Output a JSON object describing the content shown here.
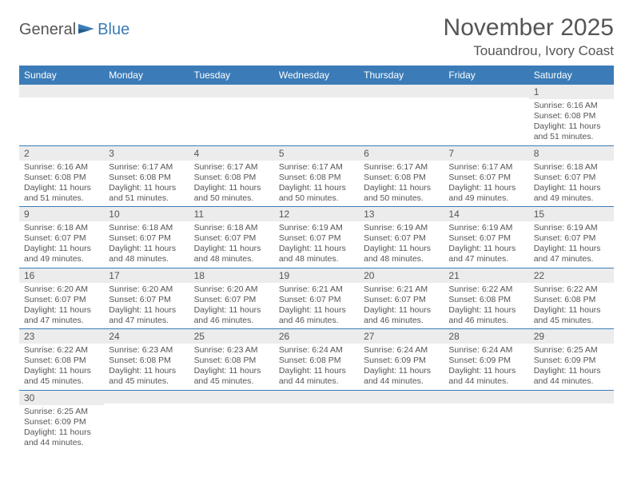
{
  "brand": {
    "general": "General",
    "blue": "Blue"
  },
  "title": "November 2025",
  "location": "Touandrou, Ivory Coast",
  "colors": {
    "header_bg": "#3b7cb8",
    "header_fg": "#ffffff",
    "daynum_bg": "#ececec",
    "text": "#555555",
    "rule": "#3b7cb8"
  },
  "day_labels": [
    "Sunday",
    "Monday",
    "Tuesday",
    "Wednesday",
    "Thursday",
    "Friday",
    "Saturday"
  ],
  "weeks": [
    [
      {
        "n": "",
        "sr": "",
        "ss": "",
        "dl": ""
      },
      {
        "n": "",
        "sr": "",
        "ss": "",
        "dl": ""
      },
      {
        "n": "",
        "sr": "",
        "ss": "",
        "dl": ""
      },
      {
        "n": "",
        "sr": "",
        "ss": "",
        "dl": ""
      },
      {
        "n": "",
        "sr": "",
        "ss": "",
        "dl": ""
      },
      {
        "n": "",
        "sr": "",
        "ss": "",
        "dl": ""
      },
      {
        "n": "1",
        "sr": "Sunrise: 6:16 AM",
        "ss": "Sunset: 6:08 PM",
        "dl": "Daylight: 11 hours and 51 minutes."
      }
    ],
    [
      {
        "n": "2",
        "sr": "Sunrise: 6:16 AM",
        "ss": "Sunset: 6:08 PM",
        "dl": "Daylight: 11 hours and 51 minutes."
      },
      {
        "n": "3",
        "sr": "Sunrise: 6:17 AM",
        "ss": "Sunset: 6:08 PM",
        "dl": "Daylight: 11 hours and 51 minutes."
      },
      {
        "n": "4",
        "sr": "Sunrise: 6:17 AM",
        "ss": "Sunset: 6:08 PM",
        "dl": "Daylight: 11 hours and 50 minutes."
      },
      {
        "n": "5",
        "sr": "Sunrise: 6:17 AM",
        "ss": "Sunset: 6:08 PM",
        "dl": "Daylight: 11 hours and 50 minutes."
      },
      {
        "n": "6",
        "sr": "Sunrise: 6:17 AM",
        "ss": "Sunset: 6:08 PM",
        "dl": "Daylight: 11 hours and 50 minutes."
      },
      {
        "n": "7",
        "sr": "Sunrise: 6:17 AM",
        "ss": "Sunset: 6:07 PM",
        "dl": "Daylight: 11 hours and 49 minutes."
      },
      {
        "n": "8",
        "sr": "Sunrise: 6:18 AM",
        "ss": "Sunset: 6:07 PM",
        "dl": "Daylight: 11 hours and 49 minutes."
      }
    ],
    [
      {
        "n": "9",
        "sr": "Sunrise: 6:18 AM",
        "ss": "Sunset: 6:07 PM",
        "dl": "Daylight: 11 hours and 49 minutes."
      },
      {
        "n": "10",
        "sr": "Sunrise: 6:18 AM",
        "ss": "Sunset: 6:07 PM",
        "dl": "Daylight: 11 hours and 48 minutes."
      },
      {
        "n": "11",
        "sr": "Sunrise: 6:18 AM",
        "ss": "Sunset: 6:07 PM",
        "dl": "Daylight: 11 hours and 48 minutes."
      },
      {
        "n": "12",
        "sr": "Sunrise: 6:19 AM",
        "ss": "Sunset: 6:07 PM",
        "dl": "Daylight: 11 hours and 48 minutes."
      },
      {
        "n": "13",
        "sr": "Sunrise: 6:19 AM",
        "ss": "Sunset: 6:07 PM",
        "dl": "Daylight: 11 hours and 48 minutes."
      },
      {
        "n": "14",
        "sr": "Sunrise: 6:19 AM",
        "ss": "Sunset: 6:07 PM",
        "dl": "Daylight: 11 hours and 47 minutes."
      },
      {
        "n": "15",
        "sr": "Sunrise: 6:19 AM",
        "ss": "Sunset: 6:07 PM",
        "dl": "Daylight: 11 hours and 47 minutes."
      }
    ],
    [
      {
        "n": "16",
        "sr": "Sunrise: 6:20 AM",
        "ss": "Sunset: 6:07 PM",
        "dl": "Daylight: 11 hours and 47 minutes."
      },
      {
        "n": "17",
        "sr": "Sunrise: 6:20 AM",
        "ss": "Sunset: 6:07 PM",
        "dl": "Daylight: 11 hours and 47 minutes."
      },
      {
        "n": "18",
        "sr": "Sunrise: 6:20 AM",
        "ss": "Sunset: 6:07 PM",
        "dl": "Daylight: 11 hours and 46 minutes."
      },
      {
        "n": "19",
        "sr": "Sunrise: 6:21 AM",
        "ss": "Sunset: 6:07 PM",
        "dl": "Daylight: 11 hours and 46 minutes."
      },
      {
        "n": "20",
        "sr": "Sunrise: 6:21 AM",
        "ss": "Sunset: 6:07 PM",
        "dl": "Daylight: 11 hours and 46 minutes."
      },
      {
        "n": "21",
        "sr": "Sunrise: 6:22 AM",
        "ss": "Sunset: 6:08 PM",
        "dl": "Daylight: 11 hours and 46 minutes."
      },
      {
        "n": "22",
        "sr": "Sunrise: 6:22 AM",
        "ss": "Sunset: 6:08 PM",
        "dl": "Daylight: 11 hours and 45 minutes."
      }
    ],
    [
      {
        "n": "23",
        "sr": "Sunrise: 6:22 AM",
        "ss": "Sunset: 6:08 PM",
        "dl": "Daylight: 11 hours and 45 minutes."
      },
      {
        "n": "24",
        "sr": "Sunrise: 6:23 AM",
        "ss": "Sunset: 6:08 PM",
        "dl": "Daylight: 11 hours and 45 minutes."
      },
      {
        "n": "25",
        "sr": "Sunrise: 6:23 AM",
        "ss": "Sunset: 6:08 PM",
        "dl": "Daylight: 11 hours and 45 minutes."
      },
      {
        "n": "26",
        "sr": "Sunrise: 6:24 AM",
        "ss": "Sunset: 6:08 PM",
        "dl": "Daylight: 11 hours and 44 minutes."
      },
      {
        "n": "27",
        "sr": "Sunrise: 6:24 AM",
        "ss": "Sunset: 6:09 PM",
        "dl": "Daylight: 11 hours and 44 minutes."
      },
      {
        "n": "28",
        "sr": "Sunrise: 6:24 AM",
        "ss": "Sunset: 6:09 PM",
        "dl": "Daylight: 11 hours and 44 minutes."
      },
      {
        "n": "29",
        "sr": "Sunrise: 6:25 AM",
        "ss": "Sunset: 6:09 PM",
        "dl": "Daylight: 11 hours and 44 minutes."
      }
    ],
    [
      {
        "n": "30",
        "sr": "Sunrise: 6:25 AM",
        "ss": "Sunset: 6:09 PM",
        "dl": "Daylight: 11 hours and 44 minutes."
      },
      {
        "n": "",
        "sr": "",
        "ss": "",
        "dl": ""
      },
      {
        "n": "",
        "sr": "",
        "ss": "",
        "dl": ""
      },
      {
        "n": "",
        "sr": "",
        "ss": "",
        "dl": ""
      },
      {
        "n": "",
        "sr": "",
        "ss": "",
        "dl": ""
      },
      {
        "n": "",
        "sr": "",
        "ss": "",
        "dl": ""
      },
      {
        "n": "",
        "sr": "",
        "ss": "",
        "dl": ""
      }
    ]
  ]
}
